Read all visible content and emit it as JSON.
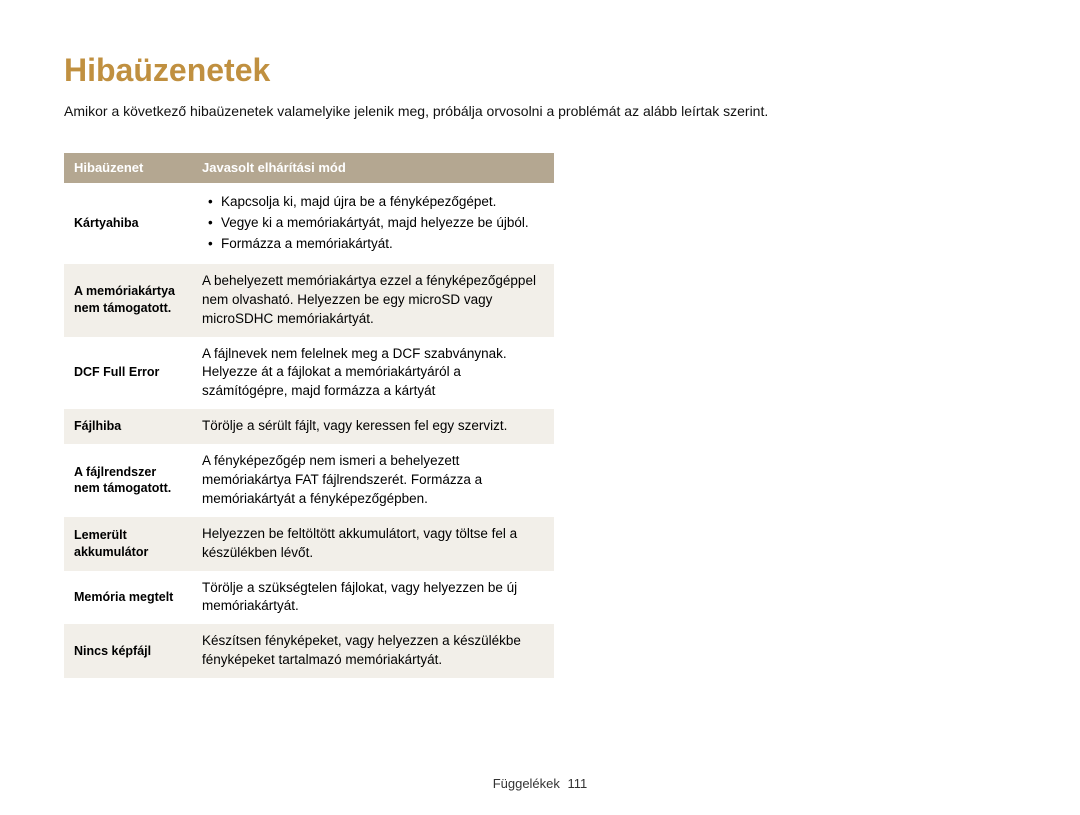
{
  "title": "Hibaüzenetek",
  "title_color": "#c09040",
  "intro": "Amikor a következő hibaüzenetek valamelyike jelenik meg, próbálja orvosolni a problémát az alább leírtak szerint.",
  "table": {
    "header_bg": "#b4a791",
    "header_fg": "#ffffff",
    "row_alt_bg": "#f2efe9",
    "row_bg": "#ffffff",
    "text_color": "#000000",
    "columns": [
      "Hibaüzenet",
      "Javasolt elhárítási mód"
    ],
    "rows": [
      {
        "label": "Kártyahiba",
        "bullets": [
          "Kapcsolja ki, majd újra be a fényképezőgépet.",
          "Vegye ki a memóriakártyát, majd helyezze be újból.",
          "Formázza a memóriakártyát."
        ]
      },
      {
        "label": "A memóriakártya nem támogatott.",
        "text": "A behelyezett memóriakártya ezzel a fényképezőgéppel nem olvasható. Helyezzen be egy microSD vagy microSDHC memóriakártyát."
      },
      {
        "label": "DCF Full Error",
        "text": "A fájlnevek nem felelnek meg a DCF szabványnak. Helyezze át a fájlokat a memóriakártyáról a számítógépre, majd formázza a kártyát"
      },
      {
        "label": "Fájlhiba",
        "text": "Törölje a sérült fájlt, vagy keressen fel egy szervizt."
      },
      {
        "label": "A fájlrendszer nem támogatott.",
        "text": "A fényképezőgép nem ismeri a behelyezett memóriakártya FAT fájlrendszerét. Formázza a memóriakártyát a fényképezőgépben."
      },
      {
        "label": "Lemerült akkumulátor",
        "text": "Helyezzen be feltöltött akkumulátort, vagy töltse fel a készülékben lévőt."
      },
      {
        "label": "Memória megtelt",
        "text": "Törölje a szükségtelen fájlokat, vagy helyezzen be új memóriakártyát."
      },
      {
        "label": "Nincs képfájl",
        "text": "Készítsen fényképeket, vagy helyezzen a készülékbe fényképeket tartalmazó memóriakártyát."
      }
    ]
  },
  "footer": {
    "label": "Függelékek",
    "page": "111"
  }
}
